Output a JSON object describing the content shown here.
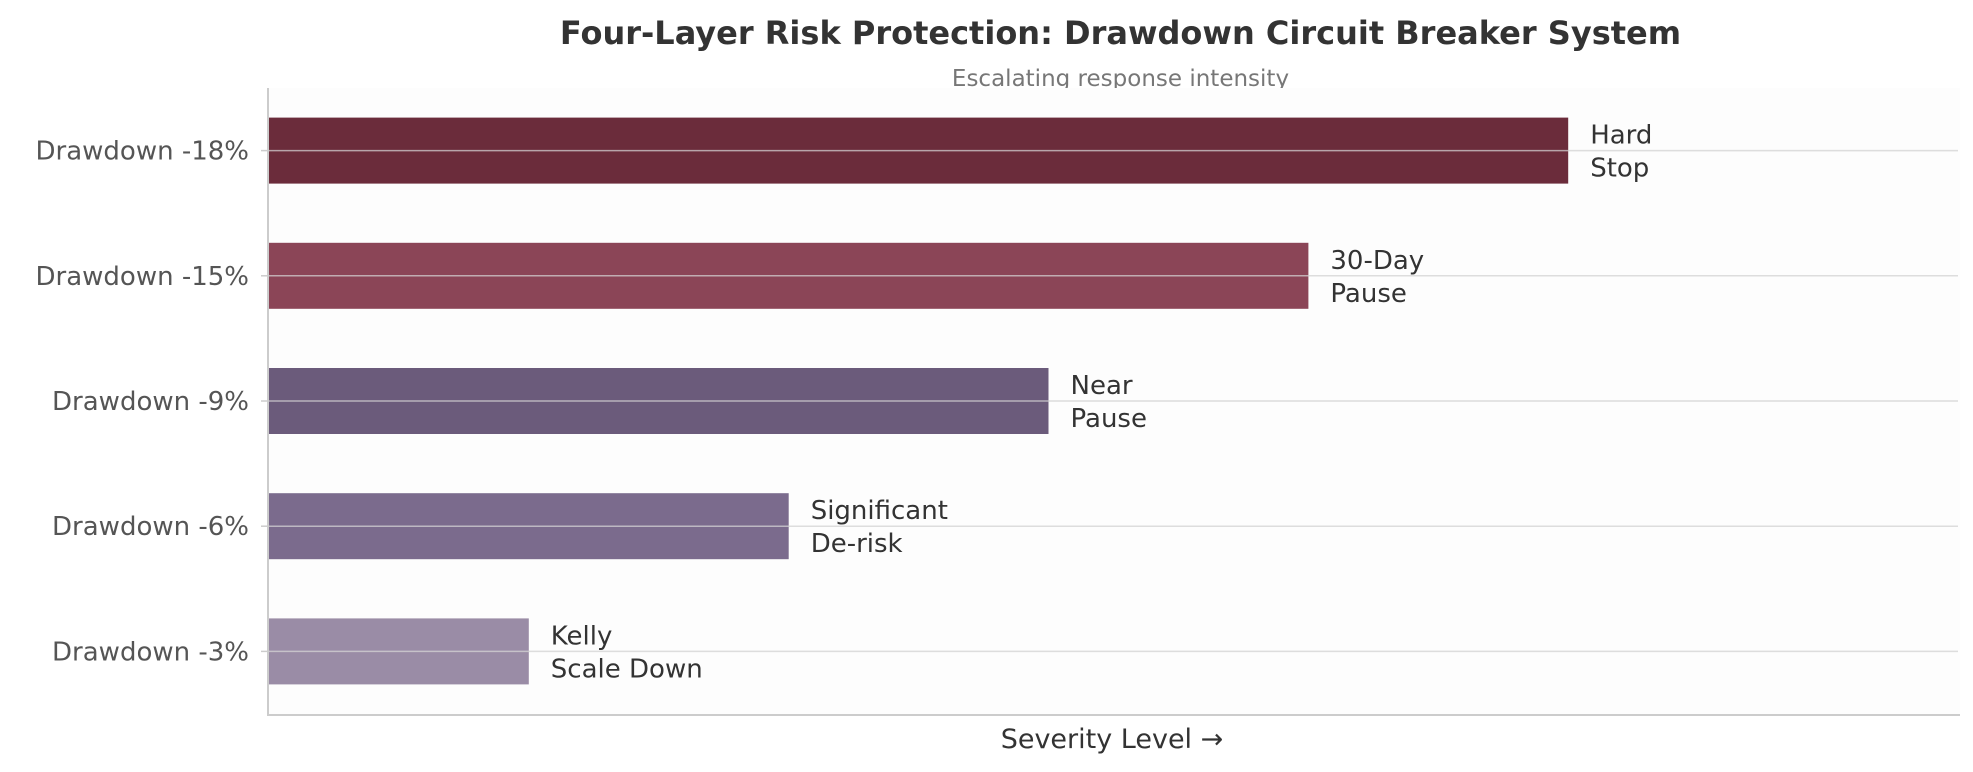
{
  "chart_data": {
    "type": "bar",
    "orientation": "horizontal",
    "title": "Four-Layer Risk Protection: Drawdown Circuit Breaker System",
    "subtitle": "Escalating response intensity",
    "xlabel": "Severity Level →",
    "ylabel": "",
    "xlim": [
      0,
      6.5
    ],
    "grid": "horizontal",
    "categories": [
      "Drawdown -3%",
      "Drawdown -6%",
      "Drawdown -9%",
      "Drawdown -15%",
      "Drawdown -18%"
    ],
    "values": [
      1,
      2,
      3,
      4,
      5
    ],
    "bar_labels": [
      [
        "Kelly",
        "Scale Down"
      ],
      [
        "Significant",
        "De-risk"
      ],
      [
        "Near",
        "Pause"
      ],
      [
        "30-Day",
        "Pause"
      ],
      [
        "Hard",
        "Stop"
      ]
    ],
    "colors": [
      "#9a8ca6",
      "#7b6b8d",
      "#6b5b7b",
      "#8b4557",
      "#6b2c3b"
    ],
    "background_color": "#fdfdfd"
  }
}
